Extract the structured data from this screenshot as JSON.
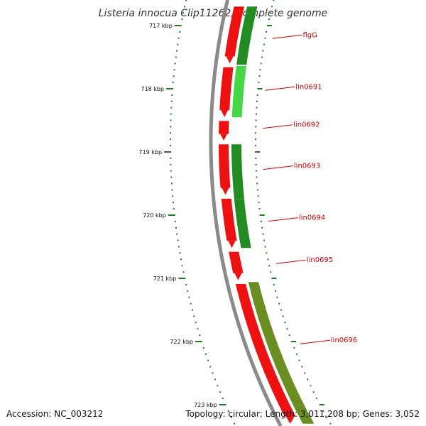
{
  "title": "Listeria innocua Clip11262, complete genome",
  "footer": {
    "accession": "Accession: NC_003212",
    "topology": "Topology: circular; Length: 3,011,208 bp; Genes: 3,052"
  },
  "ticks": [
    {
      "kbp": 717,
      "label": "717 kbp"
    },
    {
      "kbp": 718,
      "label": "718 kbp"
    },
    {
      "kbp": 719,
      "label": "719 kbp"
    },
    {
      "kbp": 720,
      "label": "720 kbp"
    },
    {
      "kbp": 721,
      "label": "721 kbp"
    },
    {
      "kbp": 722,
      "label": "722 kbp"
    },
    {
      "kbp": 723,
      "label": "723 kbp"
    }
  ],
  "colors": {
    "forward_cds": "#ee1111",
    "reverse_cds_dark": "#228b22",
    "reverse_cds_light": "#44d644",
    "reverse_cds_olive": "#6b8e23",
    "backbone": "#8a8a8a",
    "tick": "#1f7a1f",
    "label": "#cc0000"
  },
  "forward_genes": [
    {
      "start_kbp": 716.7,
      "end_kbp": 717.6
    },
    {
      "start_kbp": 717.66,
      "end_kbp": 718.45
    },
    {
      "start_kbp": 718.51,
      "end_kbp": 718.82
    },
    {
      "start_kbp": 718.88,
      "end_kbp": 719.68
    },
    {
      "start_kbp": 719.74,
      "end_kbp": 720.52
    },
    {
      "start_kbp": 720.58,
      "end_kbp": 721.03
    },
    {
      "start_kbp": 721.09,
      "end_kbp": 723.3
    }
  ],
  "labeled_genes": [
    {
      "name": "flgG",
      "start_kbp": 716.7,
      "end_kbp": 717.62,
      "label_kbp": 717.15,
      "color_key": "reverse_cds_dark"
    },
    {
      "name": "lin0691",
      "start_kbp": 717.64,
      "end_kbp": 718.45,
      "label_kbp": 717.97,
      "color_key": "reverse_cds_light"
    },
    {
      "name": "lin0692",
      "start_kbp": null,
      "end_kbp": null,
      "label_kbp": 718.57,
      "color_key": null
    },
    {
      "name": "lin0693",
      "start_kbp": 718.88,
      "end_kbp": 719.75,
      "label_kbp": 719.22,
      "color_key": "reverse_cds_dark"
    },
    {
      "name": "lin0694",
      "start_kbp": 719.75,
      "end_kbp": 720.52,
      "label_kbp": 720.04,
      "color_key": "reverse_cds_dark"
    },
    {
      "name": "lin0695",
      "start_kbp": null,
      "end_kbp": null,
      "label_kbp": 720.71,
      "color_key": null
    },
    {
      "name": "lin0696",
      "start_kbp": 721.06,
      "end_kbp": 723.3,
      "label_kbp": 721.98,
      "color_key": "reverse_cds_olive"
    }
  ]
}
